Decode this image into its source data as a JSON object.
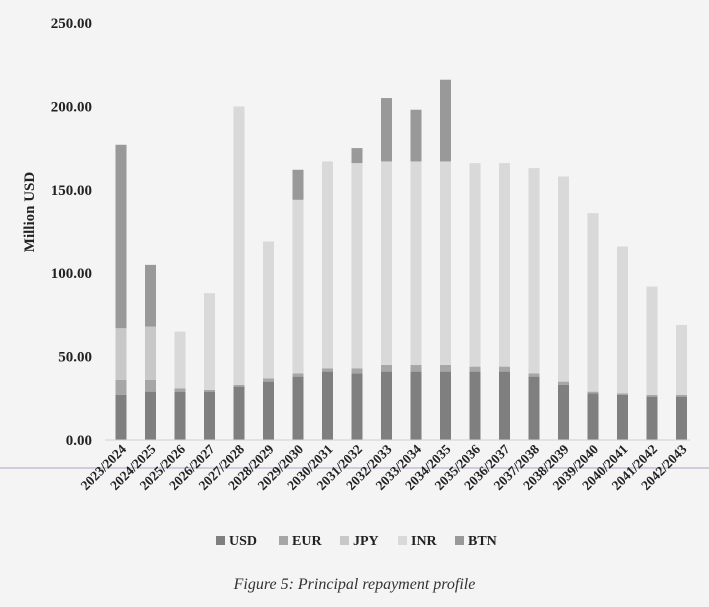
{
  "caption": "Figure 5: Principal repayment profile",
  "chart_data": {
    "type": "bar",
    "stacked": true,
    "ylabel": "Million USD",
    "ylim": [
      0,
      250
    ],
    "yticks": [
      "0.00",
      "50.00",
      "100.00",
      "150.00",
      "200.00",
      "250.00"
    ],
    "grid": false,
    "legend_position": "bottom",
    "categories": [
      "2023/2024",
      "2024/2025",
      "2025/2026",
      "2026/2027",
      "2027/2028",
      "2028/2029",
      "2029/2030",
      "2030/2031",
      "2031/2032",
      "2032/2033",
      "2033/2034",
      "2034/2035",
      "2035/2036",
      "2036/2037",
      "2037/2038",
      "2038/2039",
      "2039/2040",
      "2040/2041",
      "2041/2042",
      "2042/2043"
    ],
    "series": [
      {
        "name": "USD",
        "color": "#7f7f7f",
        "values": [
          27,
          29,
          29,
          29,
          32,
          35,
          38,
          41,
          40,
          41,
          41,
          41,
          41,
          41,
          38,
          33,
          28,
          27,
          26,
          26
        ]
      },
      {
        "name": "EUR",
        "color": "#a6a6a6",
        "values": [
          9,
          7,
          2,
          1,
          1,
          2,
          2,
          2,
          3,
          4,
          4,
          4,
          3,
          3,
          2,
          2,
          1,
          1,
          1,
          1
        ]
      },
      {
        "name": "JPY",
        "color": "#c8c8c8",
        "values": [
          31,
          32,
          0,
          0,
          0,
          0,
          0,
          0,
          0,
          0,
          0,
          0,
          0,
          0,
          0,
          0,
          0,
          0,
          0,
          0
        ]
      },
      {
        "name": "INR",
        "color": "#d9d9d9",
        "values": [
          0,
          0,
          34,
          58,
          167,
          82,
          104,
          124,
          123,
          122,
          122,
          122,
          122,
          122,
          123,
          123,
          107,
          88,
          65,
          42
        ]
      },
      {
        "name": "BTN",
        "color": "#999999",
        "values": [
          110,
          37,
          0,
          0,
          0,
          0,
          18,
          0,
          9,
          38,
          31,
          49,
          0,
          0,
          0,
          0,
          0,
          0,
          0,
          0
        ]
      }
    ]
  }
}
